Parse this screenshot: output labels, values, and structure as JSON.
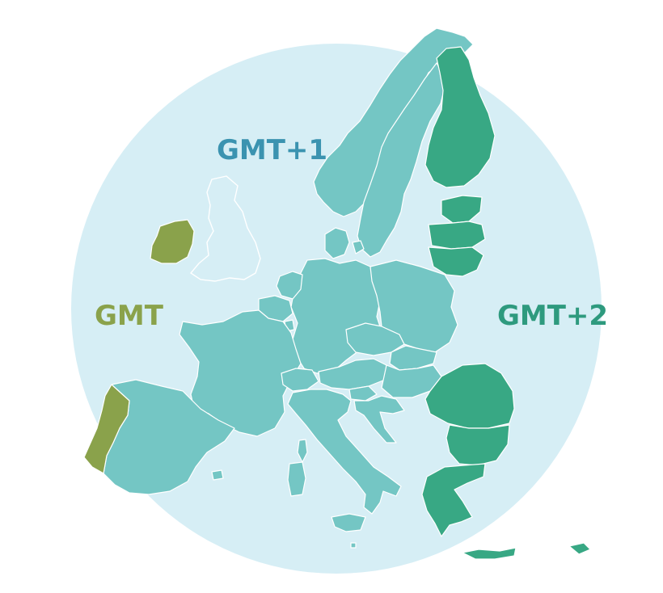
{
  "map": {
    "zones": [
      {
        "id": "gmt",
        "label": "GMT",
        "color": "#8aa24b"
      },
      {
        "id": "gmt1",
        "label": "GMT+1",
        "color": "#3b93b0"
      },
      {
        "id": "gmt2",
        "label": "GMT+2",
        "color": "#2e9a7e"
      }
    ],
    "background_color": "#d6eef5",
    "land_colors": {
      "gmt": "#8aa24b",
      "gmt1": "#74c6c4",
      "gmt2": "#38a884"
    }
  }
}
